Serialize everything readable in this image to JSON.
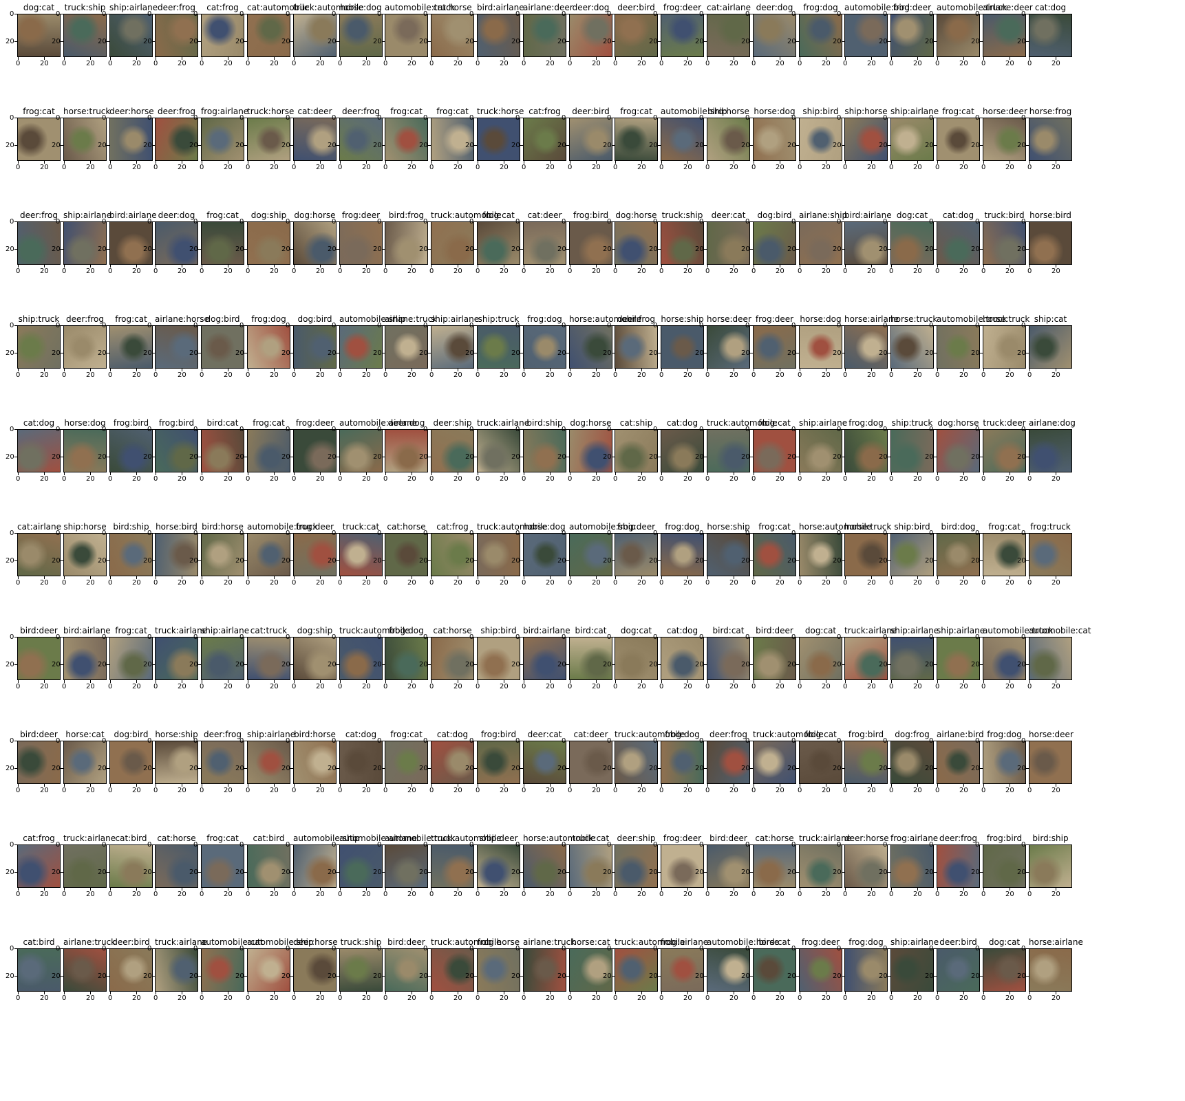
{
  "figure": {
    "rows": 10,
    "cols": 23,
    "tick_labels": {
      "y": [
        "0",
        "20"
      ],
      "x": [
        "0",
        "20"
      ]
    },
    "titles": [
      [
        "dog:cat",
        "truck:ship",
        "ship:airlane",
        "deer:frog",
        "cat:frog",
        "cat:automobile",
        "truck:automobile",
        "horse:dog",
        "automobile:truck",
        "cat:horse",
        "bird:airlane",
        "airlane:deer",
        "deer:dog",
        "deer:bird",
        "frog:deer",
        "cat:airlane",
        "deer:dog",
        "frog:dog",
        "automobile:bird",
        "frog:deer",
        "automobile:truck",
        "airlane:deer",
        "cat:dog"
      ],
      [
        "frog:cat",
        "horse:truck",
        "deer:horse",
        "deer:frog",
        "frog:airlane",
        "truck:horse",
        "cat:deer",
        "deer:frog",
        "frog:cat",
        "frog:cat",
        "truck:horse",
        "cat:frog",
        "deer:bird",
        "frog:cat",
        "automobile:ship",
        "bird:horse",
        "horse:dog",
        "ship:bird",
        "ship:horse",
        "ship:airlane",
        "frog:cat",
        "horse:deer",
        "horse:frog"
      ],
      [
        "deer:frog",
        "ship:airlane",
        "bird:airlane",
        "deer:dog",
        "frog:cat",
        "dog:ship",
        "dog:horse",
        "frog:deer",
        "bird:frog",
        "truck:automobile",
        "frog:cat",
        "cat:deer",
        "frog:bird",
        "dog:horse",
        "truck:ship",
        "deer:cat",
        "dog:bird",
        "airlane:ship",
        "bird:airlane",
        "dog:cat",
        "cat:dog",
        "truck:bird",
        "horse:bird"
      ],
      [
        "ship:truck",
        "deer:frog",
        "frog:cat",
        "airlane:horse",
        "dog:bird",
        "frog:dog",
        "dog:bird",
        "automobile:ship",
        "airlane:truck",
        "ship:airlane",
        "ship:truck",
        "frog:dog",
        "horse:automobile",
        "deer:frog",
        "horse:ship",
        "horse:deer",
        "frog:deer",
        "horse:dog",
        "horse:airlane",
        "horse:truck",
        "automobile:truck",
        "horse:truck",
        "ship:cat"
      ],
      [
        "cat:dog",
        "horse:dog",
        "frog:bird",
        "frog:bird",
        "bird:cat",
        "frog:cat",
        "frog:deer",
        "automobile:airlane",
        "deer:dog",
        "deer:ship",
        "truck:airlane",
        "bird:ship",
        "dog:horse",
        "cat:ship",
        "cat:dog",
        "truck:automobile",
        "frog:cat",
        "ship:airlane",
        "frog:dog",
        "ship:truck",
        "dog:horse",
        "truck:deer",
        "airlane:dog"
      ],
      [
        "cat:airlane",
        "ship:horse",
        "bird:ship",
        "horse:bird",
        "bird:horse",
        "automobile:truck",
        "frog:deer",
        "truck:cat",
        "cat:horse",
        "cat:frog",
        "truck:automobile",
        "horse:dog",
        "automobile:ship",
        "frog:deer",
        "frog:dog",
        "horse:ship",
        "frog:cat",
        "horse:automobile",
        "horse:truck",
        "ship:bird",
        "bird:dog",
        "frog:cat",
        "frog:truck"
      ],
      [
        "bird:deer",
        "bird:airlane",
        "frog:cat",
        "truck:airlane",
        "ship:airlane",
        "cat:truck",
        "dog:ship",
        "truck:automobile",
        "frog:dog",
        "cat:horse",
        "ship:bird",
        "bird:airlane",
        "bird:cat",
        "dog:cat",
        "cat:dog",
        "bird:cat",
        "bird:deer",
        "dog:cat",
        "truck:airlane",
        "ship:airlane",
        "ship:airlane",
        "automobile:truck",
        "automobile:cat"
      ],
      [
        "bird:deer",
        "horse:cat",
        "dog:bird",
        "horse:ship",
        "deer:frog",
        "ship:airlane",
        "bird:horse",
        "cat:dog",
        "frog:cat",
        "cat:dog",
        "frog:bird",
        "deer:cat",
        "cat:deer",
        "truck:automobile",
        "frog:dog",
        "deer:frog",
        "truck:automobile",
        "frog:cat",
        "frog:bird",
        "dog:frog",
        "airlane:bird",
        "frog:dog",
        "horse:deer"
      ],
      [
        "cat:frog",
        "truck:airlane",
        "cat:bird",
        "cat:horse",
        "frog:cat",
        "cat:bird",
        "automobile:ship",
        "automobile:airlane",
        "automobile:truck",
        "truck:automobile",
        "ship:deer",
        "horse:automobile",
        "truck:cat",
        "deer:ship",
        "frog:deer",
        "bird:deer",
        "cat:horse",
        "truck:airlane",
        "deer:horse",
        "frog:airlane",
        "deer:frog",
        "frog:bird",
        "bird:ship"
      ],
      [
        "cat:bird",
        "airlane:truck",
        "deer:bird",
        "truck:airlane",
        "automobile:cat",
        "automobile:ship",
        "deer:horse",
        "truck:ship",
        "bird:deer",
        "truck:automobile",
        "frog:horse",
        "airlane:truck",
        "horse:cat",
        "truck:automobile",
        "frog:airlane",
        "automobile:horse",
        "bird:cat",
        "frog:deer",
        "frog:dog",
        "ship:airlane",
        "deer:bird",
        "dog:cat",
        "horse:airlane"
      ]
    ],
    "colors": {
      "axis": "#000000",
      "thumb_palette": [
        "#5a4a3a",
        "#8a7a5a",
        "#6b7b4a",
        "#4a5a6a",
        "#9a8a6a",
        "#7a6a5a",
        "#3a4a3a",
        "#a09070",
        "#5a6a7a",
        "#8a6a4a",
        "#6a5a4a",
        "#4a6a5a",
        "#b0a080",
        "#707060",
        "#506070",
        "#907050",
        "#a05040",
        "#405070",
        "#c0b090",
        "#606848"
      ]
    }
  }
}
